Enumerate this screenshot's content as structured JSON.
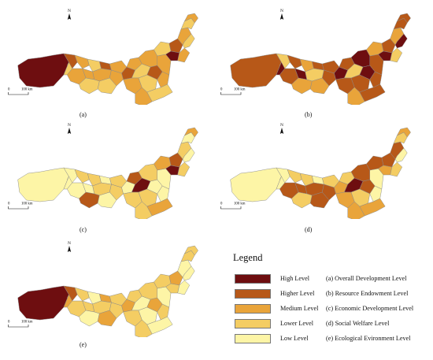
{
  "colors": {
    "high": "#6e0e10",
    "higher": "#b75818",
    "medium": "#e9a43a",
    "lower": "#f4cd63",
    "low": "#fdf5a6",
    "border": "#8a8a8a"
  },
  "map_common": {
    "north_label": "N",
    "scale_zero": "0",
    "scale_label": "100 km"
  },
  "panels": [
    {
      "label": "(a)",
      "palette": [
        "high",
        "higher",
        "medium",
        "lower",
        "medium",
        "lower",
        "medium",
        "higher",
        "medium",
        "lower",
        "medium",
        "higher",
        "medium",
        "lower",
        "medium",
        "lower",
        "medium",
        "higher",
        "lower",
        "medium",
        "medium",
        "lower",
        "medium",
        "medium",
        "lower",
        "higher",
        "high",
        "medium",
        "lower",
        "medium",
        "medium",
        "lower"
      ]
    },
    {
      "label": "(b)",
      "palette": [
        "higher",
        "lower",
        "higher",
        "high",
        "higher",
        "medium",
        "high",
        "higher",
        "lower",
        "medium",
        "higher",
        "high",
        "higher",
        "medium",
        "higher",
        "lower",
        "higher",
        "high",
        "higher",
        "medium",
        "higher",
        "higher",
        "high",
        "higher",
        "medium",
        "higher",
        "high",
        "medium",
        "higher",
        "higher",
        "lower",
        "high"
      ]
    },
    {
      "label": "(c)",
      "palette": [
        "low",
        "low",
        "lower",
        "low",
        "low",
        "lower",
        "low",
        "low",
        "lower",
        "higher",
        "lower",
        "low",
        "lower",
        "low",
        "higher",
        "high",
        "lower",
        "low",
        "lower",
        "lower",
        "low",
        "medium",
        "lower",
        "low",
        "medium",
        "higher",
        "high",
        "lower",
        "low",
        "medium",
        "lower",
        "low"
      ]
    },
    {
      "label": "(d)",
      "palette": [
        "low",
        "low",
        "lower",
        "low",
        "higher",
        "lower",
        "higher",
        "low",
        "higher",
        "lower",
        "lower",
        "medium",
        "higher",
        "higher",
        "lower",
        "high",
        "medium",
        "higher",
        "lower",
        "medium",
        "low",
        "medium",
        "higher",
        "low",
        "higher",
        "higher",
        "medium",
        "higher",
        "lower",
        "medium",
        "lower",
        "low"
      ]
    },
    {
      "label": "(e)",
      "palette": [
        "high",
        "higher",
        "lower",
        "medium",
        "lower",
        "low",
        "lower",
        "medium",
        "lower",
        "low",
        "lower",
        "medium",
        "lower",
        "medium",
        "lower",
        "low",
        "lower",
        "medium",
        "low",
        "lower",
        "lower",
        "low",
        "lower",
        "low",
        "lower",
        "medium",
        "lower",
        "low",
        "lower",
        "lower",
        "low",
        "low"
      ]
    }
  ],
  "legend": {
    "title": "Legend",
    "items": [
      {
        "color_key": "high",
        "level": "High Level",
        "desc": "(a) Overall Development Level"
      },
      {
        "color_key": "higher",
        "level": "Higher Level",
        "desc": "(b) Resource Endowment Level"
      },
      {
        "color_key": "medium",
        "level": "Medium Level",
        "desc": "(c) Economic Development Level"
      },
      {
        "color_key": "lower",
        "level": "Lower Level",
        "desc": "(d) Social Welfare Level"
      },
      {
        "color_key": "low",
        "level": "Low Level",
        "desc": "(e) Ecological Evironment Level"
      }
    ]
  }
}
